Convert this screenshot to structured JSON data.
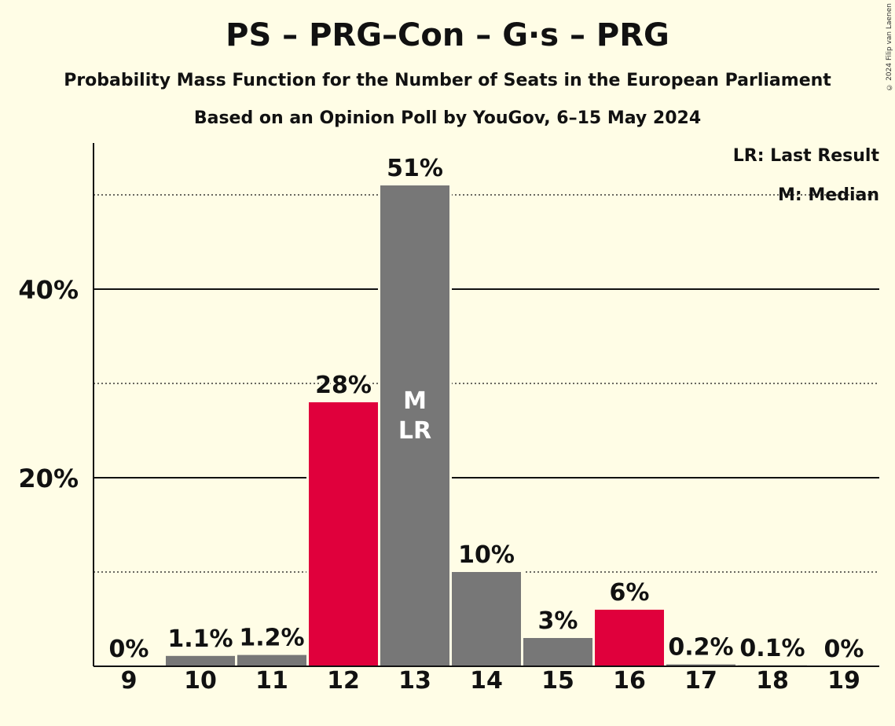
{
  "title": "PS – PRG–Con – G·s – PRG",
  "subtitle": "Probability Mass Function for the Number of Seats in the European Parliament",
  "subtitle2": "Based on an Opinion Poll by YouGov, 6–15 May 2024",
  "copyright": "© 2024 Filip van Laenen",
  "legend": {
    "lr": "LR: Last Result",
    "m": "M: Median"
  },
  "colors": {
    "background": "#FFFDE6",
    "grey": "#777777",
    "red": "#E0003C"
  },
  "chart_data": {
    "type": "bar",
    "categories": [
      "9",
      "10",
      "11",
      "12",
      "13",
      "14",
      "15",
      "16",
      "17",
      "18",
      "19"
    ],
    "values": [
      0,
      1.1,
      1.2,
      28,
      51,
      10,
      3,
      6,
      0.2,
      0.1,
      0
    ],
    "value_labels": [
      "0%",
      "1.1%",
      "1.2%",
      "28%",
      "51%",
      "10%",
      "3%",
      "6%",
      "0.2%",
      "0.1%",
      "0%"
    ],
    "bar_colors": [
      "grey",
      "grey",
      "grey",
      "red",
      "grey",
      "grey",
      "grey",
      "red",
      "grey",
      "grey",
      "grey"
    ],
    "ylim": [
      0,
      55
    ],
    "yticks": [
      {
        "value": 20,
        "label": "20%"
      },
      {
        "value": 40,
        "label": "40%"
      }
    ],
    "minor_gridlines": [
      10,
      30,
      50
    ],
    "median_index": 4,
    "last_result_index": 4,
    "median_marker": "M",
    "last_result_marker": "LR"
  }
}
